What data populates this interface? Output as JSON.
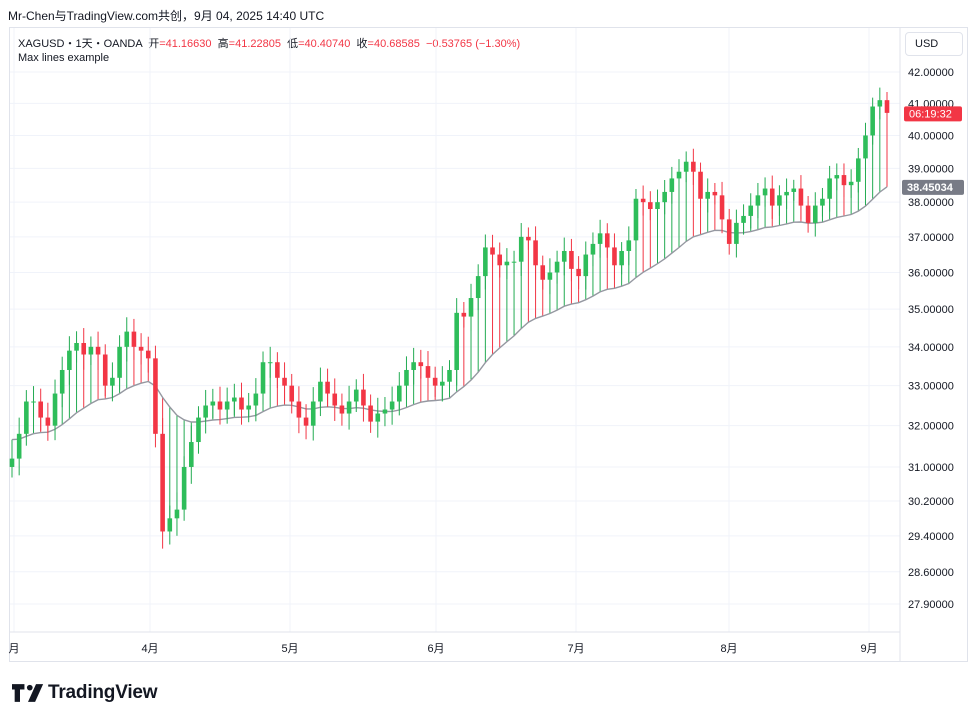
{
  "header": {
    "text": "Mr-Chen与TradingView.com共创，9月 04, 2025 14:40 UTC"
  },
  "legend": {
    "symbol": "XAGUSD・1天・OANDA",
    "open_label": "开",
    "open": "=41.16630",
    "high_label": "高",
    "high": "=41.22805",
    "low_label": "低",
    "low": "=40.40740",
    "close_label": "收",
    "close": "=40.68585",
    "change": "−0.53765 (−1.30%)",
    "indicator": "Max lines example"
  },
  "currency_button": {
    "label": "USD"
  },
  "badges": {
    "countdown": "06:19:32",
    "ma_value": "38.45034"
  },
  "brand": {
    "name": "TradingView"
  },
  "colors": {
    "up": "#22ab52",
    "down": "#f23645",
    "up_body": "#2ebd5a",
    "ma": "#9598a1",
    "grid": "#f0f3fa"
  },
  "chart_data": {
    "type": "candlestick",
    "x_ticks": [
      "月",
      "4月",
      "5月",
      "6月",
      "7月",
      "8月",
      "9月"
    ],
    "y_ticks": [
      27.9,
      28.6,
      29.4,
      30.2,
      31.0,
      32.0,
      33.0,
      34.0,
      35.0,
      36.0,
      37.0,
      38.0,
      39.0,
      40.0,
      41.0,
      42.0
    ],
    "y_tick_labels": [
      "27.90000",
      "28.60000",
      "29.40000",
      "30.20000",
      "31.00000",
      "32.00000",
      "33.00000",
      "34.00000",
      "35.00000",
      "36.00000",
      "37.00000",
      "38.00000",
      "39.00000",
      "40.00000",
      "41.00000",
      "42.00000"
    ],
    "y_scale": "log",
    "close": [
      31.2,
      31.8,
      32.6,
      32.6,
      32.2,
      32.0,
      32.8,
      33.4,
      33.9,
      34.1,
      33.8,
      34.0,
      33.8,
      33.0,
      33.2,
      34.0,
      34.4,
      34.0,
      33.9,
      33.7,
      31.8,
      29.5,
      29.8,
      30.0,
      31.0,
      31.6,
      32.2,
      32.5,
      32.6,
      32.4,
      32.6,
      32.7,
      32.4,
      32.5,
      32.8,
      33.6,
      33.6,
      33.2,
      33.0,
      32.6,
      32.2,
      32.0,
      32.6,
      33.1,
      32.8,
      32.5,
      32.3,
      32.6,
      32.9,
      32.5,
      32.1,
      32.3,
      32.4,
      32.6,
      33.0,
      33.4,
      33.6,
      33.5,
      33.2,
      33.0,
      33.1,
      33.4,
      34.9,
      34.8,
      35.3,
      35.9,
      36.7,
      36.5,
      36.2,
      36.3,
      36.3,
      37.0,
      36.9,
      36.2,
      35.8,
      36.0,
      36.3,
      36.6,
      36.1,
      35.9,
      36.5,
      36.8,
      37.1,
      36.7,
      36.2,
      36.6,
      36.9,
      38.1,
      38.0,
      37.8,
      38.0,
      38.3,
      38.7,
      38.9,
      39.2,
      38.9,
      38.1,
      38.3,
      38.2,
      37.5,
      36.8,
      37.4,
      37.6,
      37.9,
      38.2,
      38.4,
      37.9,
      38.2,
      38.3,
      38.4,
      37.9,
      37.4,
      37.9,
      38.1,
      38.7,
      38.8,
      38.5,
      38.6,
      39.3,
      40.0,
      40.9,
      41.1,
      40.7
    ],
    "ma_end": 38.45034,
    "countdown_price": 40.68585
  }
}
